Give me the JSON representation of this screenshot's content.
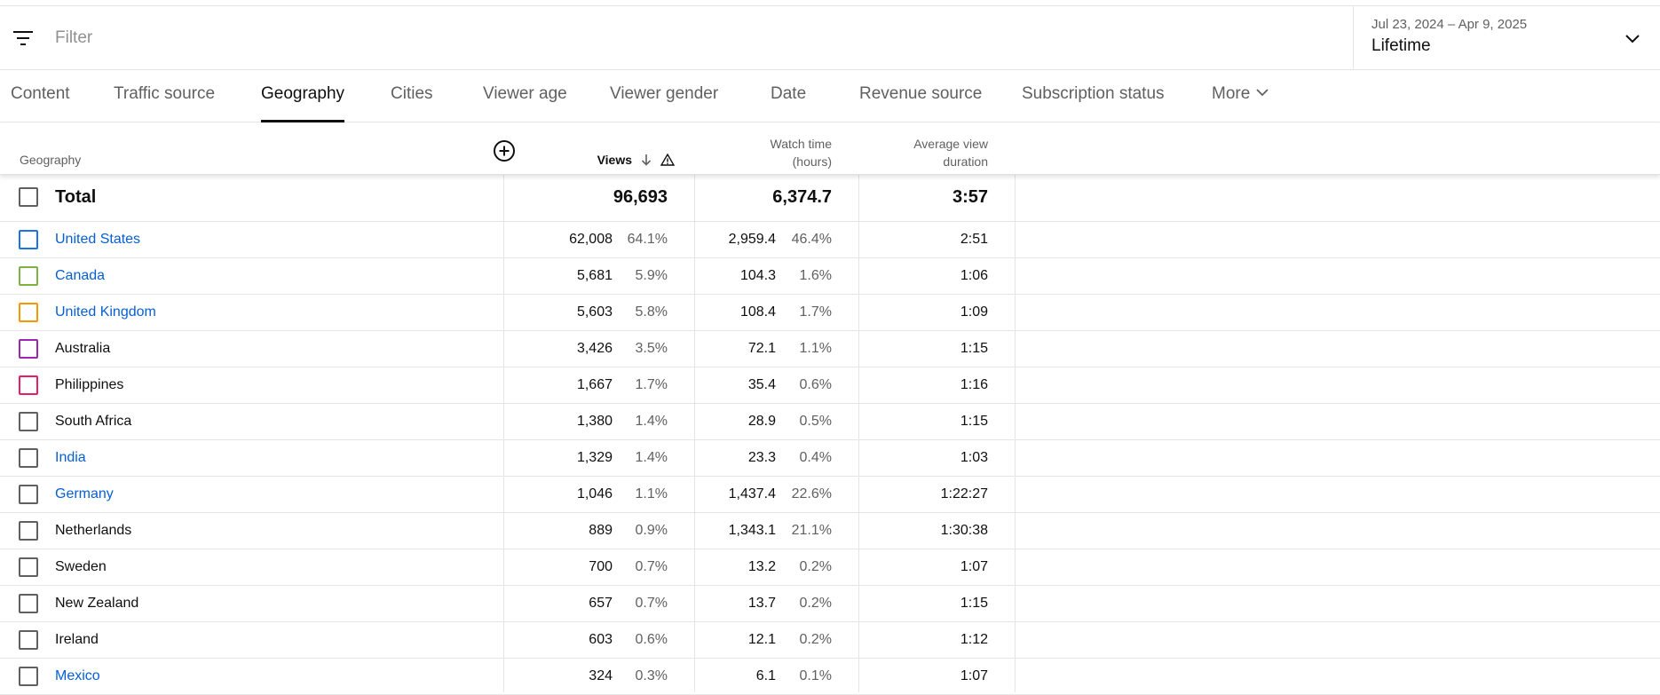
{
  "filter": {
    "placeholder": "Filter",
    "icon": "filter-icon"
  },
  "date": {
    "range": "Jul 23, 2024 – Apr 9, 2025",
    "preset": "Lifetime"
  },
  "tabs": [
    {
      "label": "Content"
    },
    {
      "label": "Traffic source"
    },
    {
      "label": "Geography",
      "active": true
    },
    {
      "label": "Cities"
    },
    {
      "label": "Viewer age"
    },
    {
      "label": "Viewer gender"
    },
    {
      "label": "Date"
    },
    {
      "label": "Revenue source"
    },
    {
      "label": "Subscription status"
    },
    {
      "label": "More"
    }
  ],
  "table": {
    "headers": {
      "geography": "Geography",
      "views": "Views",
      "watch_time_line1": "Watch time",
      "watch_time_line2": "(hours)",
      "avg_line1": "Average view",
      "avg_line2": "duration"
    },
    "total": {
      "label": "Total",
      "views": "96,693",
      "watch_time": "6,374.7",
      "avg_duration": "3:57"
    },
    "rows": [
      {
        "name": "United States",
        "link": true,
        "color": "#1a73e8",
        "views": "62,008",
        "views_pct": "64.1%",
        "watch": "2,959.4",
        "watch_pct": "46.4%",
        "avg": "2:51"
      },
      {
        "name": "Canada",
        "link": true,
        "color": "#7cb342",
        "views": "5,681",
        "views_pct": "5.9%",
        "watch": "104.3",
        "watch_pct": "1.6%",
        "avg": "1:06"
      },
      {
        "name": "United Kingdom",
        "link": true,
        "color": "#f29900",
        "views": "5,603",
        "views_pct": "5.8%",
        "watch": "108.4",
        "watch_pct": "1.7%",
        "avg": "1:09"
      },
      {
        "name": "Australia",
        "link": false,
        "color": "#9c27b0",
        "views": "3,426",
        "views_pct": "3.5%",
        "watch": "72.1",
        "watch_pct": "1.1%",
        "avg": "1:15"
      },
      {
        "name": "Philippines",
        "link": false,
        "color": "#e91e63",
        "views": "1,667",
        "views_pct": "1.7%",
        "watch": "35.4",
        "watch_pct": "0.6%",
        "avg": "1:16"
      },
      {
        "name": "South Africa",
        "link": false,
        "color": "#606060",
        "views": "1,380",
        "views_pct": "1.4%",
        "watch": "28.9",
        "watch_pct": "0.5%",
        "avg": "1:15"
      },
      {
        "name": "India",
        "link": true,
        "color": "#606060",
        "views": "1,329",
        "views_pct": "1.4%",
        "watch": "23.3",
        "watch_pct": "0.4%",
        "avg": "1:03"
      },
      {
        "name": "Germany",
        "link": true,
        "color": "#606060",
        "views": "1,046",
        "views_pct": "1.1%",
        "watch": "1,437.4",
        "watch_pct": "22.6%",
        "avg": "1:22:27"
      },
      {
        "name": "Netherlands",
        "link": false,
        "color": "#606060",
        "views": "889",
        "views_pct": "0.9%",
        "watch": "1,343.1",
        "watch_pct": "21.1%",
        "avg": "1:30:38"
      },
      {
        "name": "Sweden",
        "link": false,
        "color": "#606060",
        "views": "700",
        "views_pct": "0.7%",
        "watch": "13.2",
        "watch_pct": "0.2%",
        "avg": "1:07"
      },
      {
        "name": "New Zealand",
        "link": false,
        "color": "#606060",
        "views": "657",
        "views_pct": "0.7%",
        "watch": "13.7",
        "watch_pct": "0.2%",
        "avg": "1:15"
      },
      {
        "name": "Ireland",
        "link": false,
        "color": "#606060",
        "views": "603",
        "views_pct": "0.6%",
        "watch": "12.1",
        "watch_pct": "0.2%",
        "avg": "1:12"
      },
      {
        "name": "Mexico",
        "link": true,
        "color": "#606060",
        "views": "324",
        "views_pct": "0.3%",
        "watch": "6.1",
        "watch_pct": "0.1%",
        "avg": "1:07"
      }
    ]
  }
}
